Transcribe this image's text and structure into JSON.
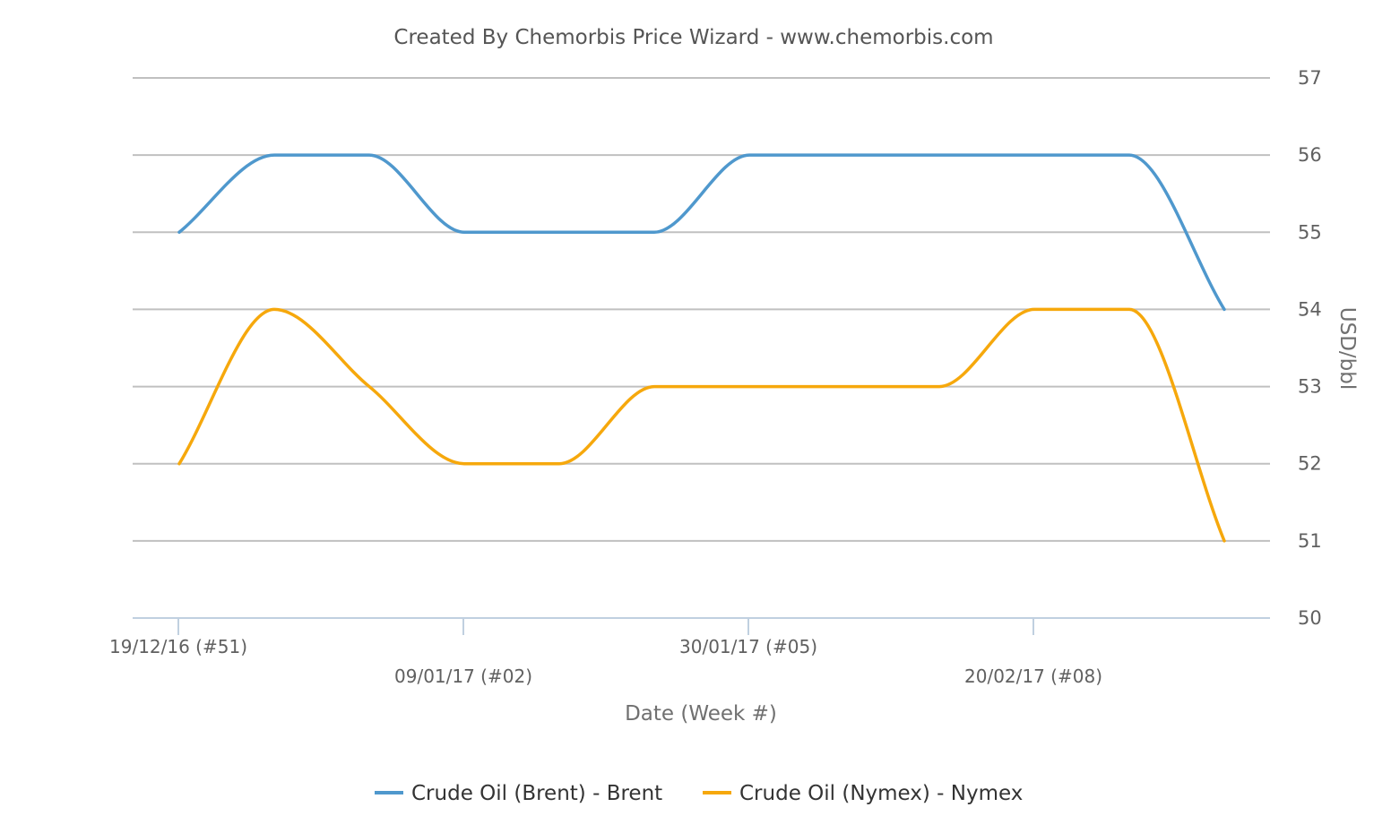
{
  "chart_data": {
    "type": "line",
    "title": "Created By Chemorbis Price Wizard - www.chemorbis.com",
    "xlabel": "Date (Week #)",
    "ylabel": "USD/bbl",
    "ylim": [
      50,
      57
    ],
    "yticks": [
      50,
      51,
      52,
      53,
      54,
      55,
      56,
      57
    ],
    "x_tick_labels": [
      "19/12/16 (#51)",
      "09/01/17 (#02)",
      "30/01/17 (#05)",
      "20/02/17 (#08)"
    ],
    "x_tick_week_index": [
      0,
      3,
      6,
      9
    ],
    "x_points": 12,
    "grid": true,
    "legend_position": "bottom",
    "series": [
      {
        "name": "Crude Oil (Brent) - Brent",
        "color": "#4f98cd",
        "values": [
          55,
          56,
          56,
          55,
          55,
          55,
          56,
          56,
          56,
          56,
          56,
          54
        ]
      },
      {
        "name": "Crude Oil (Nymex) - Nymex",
        "color": "#f6a80c",
        "values": [
          52,
          54,
          53,
          52,
          52,
          53,
          53,
          53,
          53,
          54,
          54,
          51
        ]
      }
    ]
  }
}
